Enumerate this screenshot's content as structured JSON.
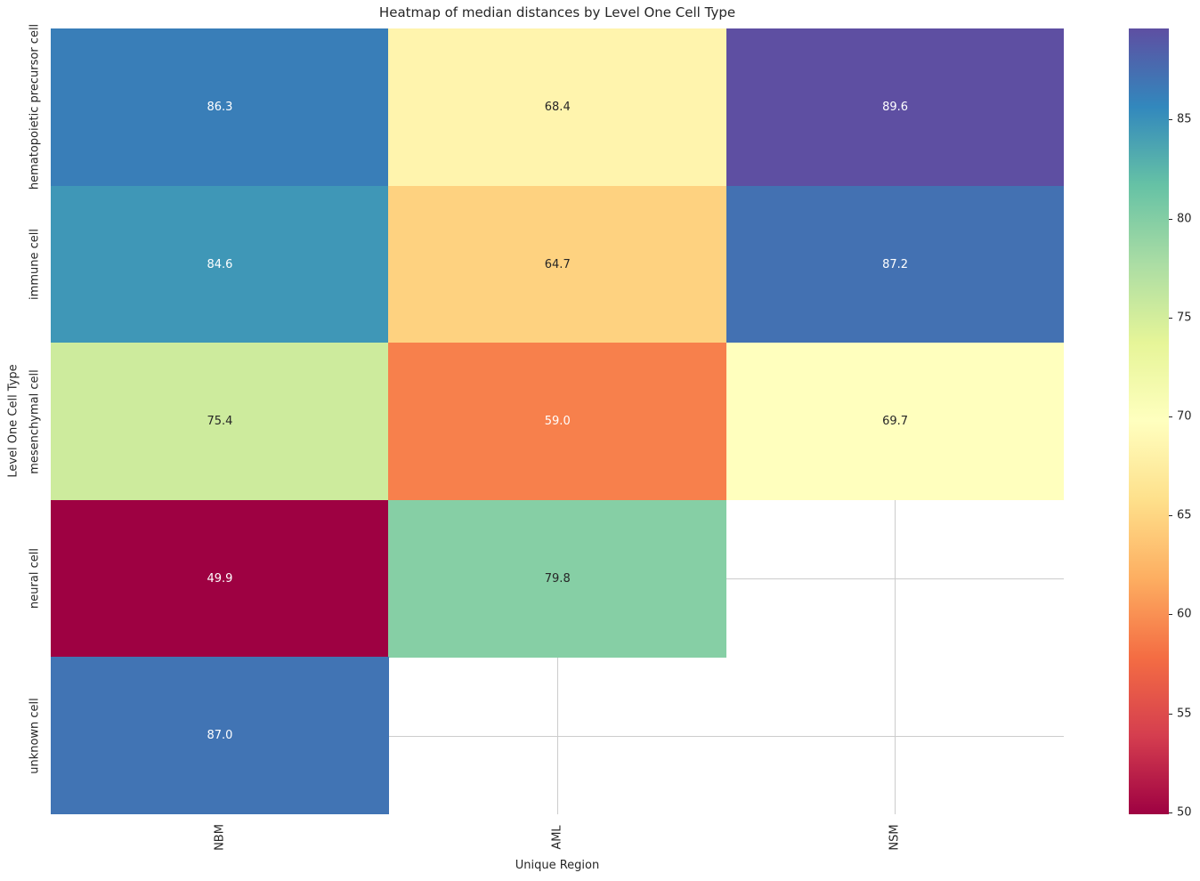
{
  "title": "Heatmap of median distances by Level One Cell Type",
  "chart_data": {
    "type": "heatmap",
    "title": "Heatmap of median distances by Level One Cell Type",
    "xlabel": "Unique Region",
    "ylabel": "Level One Cell Type",
    "x_categories": [
      "NBM",
      "AML",
      "NSM"
    ],
    "y_categories": [
      "hematopoietic precursor cell",
      "immune cell",
      "mesenchymal cell",
      "neural cell",
      "unknown cell"
    ],
    "values": [
      [
        86.3,
        68.4,
        89.6
      ],
      [
        84.6,
        64.7,
        87.2
      ],
      [
        75.4,
        59.0,
        69.7
      ],
      [
        49.9,
        79.8,
        null
      ],
      [
        87.0,
        null,
        null
      ]
    ],
    "vmin": 49.9,
    "vmax": 89.6,
    "colorbar_ticks": [
      50,
      55,
      60,
      65,
      70,
      75,
      80,
      85
    ],
    "colormap_name": "Spectral",
    "colormap_stops": [
      "#9e0142",
      "#d53e4f",
      "#f46d43",
      "#fdae61",
      "#fee08b",
      "#ffffbf",
      "#e6f598",
      "#abdda4",
      "#66c2a5",
      "#3288bd",
      "#5e4fa2"
    ],
    "grid_on": true,
    "grid_color": "#cccccc",
    "background_color": "#ffffff",
    "annot_dark_color": "#262626",
    "annot_light_color": "#ffffff",
    "legend_position": "colorbar-right"
  }
}
